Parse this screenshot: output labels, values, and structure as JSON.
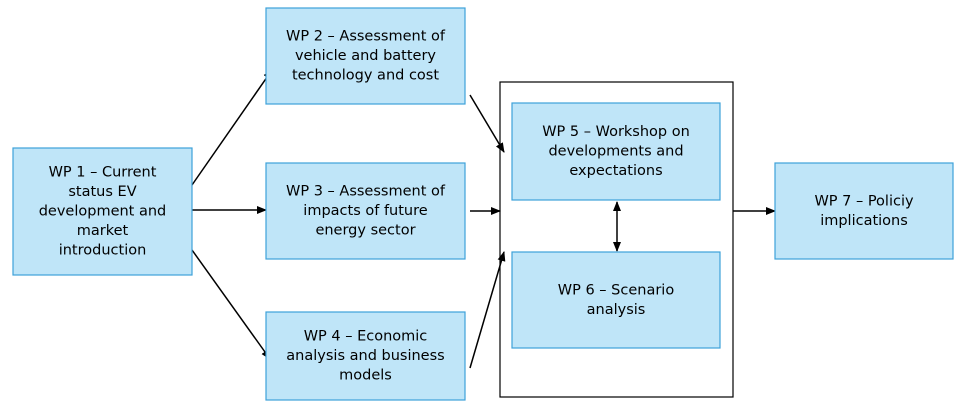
{
  "nodes": [
    {
      "lines": [
        "WP 1 – Current",
        "status EV",
        "development and",
        "market",
        "introduction"
      ]
    },
    {
      "lines": [
        "WP 2 – Assessment of",
        "vehicle and battery",
        "technology and cost"
      ]
    },
    {
      "lines": [
        "WP 3 – Assessment of",
        "impacts of future",
        "energy sector"
      ]
    },
    {
      "lines": [
        "WP 4 – Economic",
        "analysis and business",
        "models"
      ]
    },
    {
      "lines": [
        "WP 5 – Workshop on",
        "developments and",
        "expectations"
      ]
    },
    {
      "lines": [
        "WP 6 – Scenario",
        "analysis"
      ]
    },
    {
      "lines": [
        "WP 7 – Policiy",
        "implications"
      ]
    }
  ]
}
